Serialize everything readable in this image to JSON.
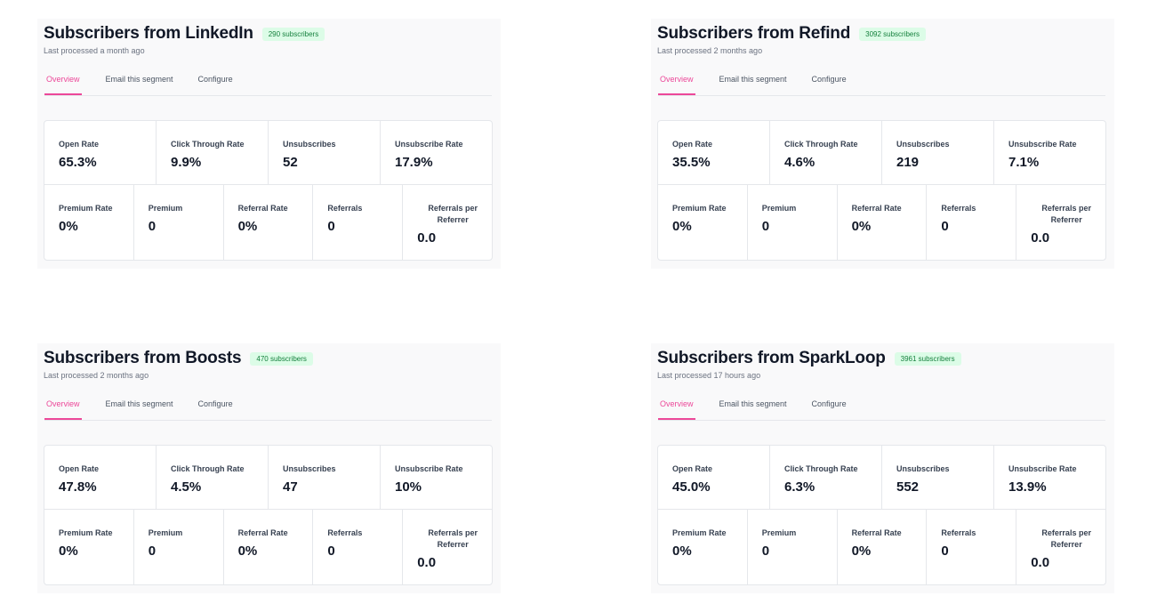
{
  "panels": [
    {
      "title": "Subscribers from LinkedIn",
      "badge": "290 subscribers",
      "last_processed": "Last processed a month ago",
      "tabs": [
        "Overview",
        "Email this segment",
        "Configure"
      ],
      "row1": [
        {
          "label": "Open Rate",
          "value": "65.3%"
        },
        {
          "label": "Click Through Rate",
          "value": "9.9%"
        },
        {
          "label": "Unsubscribes",
          "value": "52"
        },
        {
          "label": "Unsubscribe Rate",
          "value": "17.9%"
        }
      ],
      "row2": [
        {
          "label": "Premium Rate",
          "value": "0%"
        },
        {
          "label": "Premium",
          "value": "0"
        },
        {
          "label": "Referral Rate",
          "value": "0%"
        },
        {
          "label": "Referrals",
          "value": "0"
        },
        {
          "label": "Referrals per Referrer",
          "value": "0.0"
        }
      ]
    },
    {
      "title": "Subscribers from Refind",
      "badge": "3092 subscribers",
      "last_processed": "Last processed 2 months ago",
      "tabs": [
        "Overview",
        "Email this segment",
        "Configure"
      ],
      "row1": [
        {
          "label": "Open Rate",
          "value": "35.5%"
        },
        {
          "label": "Click Through Rate",
          "value": "4.6%"
        },
        {
          "label": "Unsubscribes",
          "value": "219"
        },
        {
          "label": "Unsubscribe Rate",
          "value": "7.1%"
        }
      ],
      "row2": [
        {
          "label": "Premium Rate",
          "value": "0%"
        },
        {
          "label": "Premium",
          "value": "0"
        },
        {
          "label": "Referral Rate",
          "value": "0%"
        },
        {
          "label": "Referrals",
          "value": "0"
        },
        {
          "label": "Referrals per Referrer",
          "value": "0.0"
        }
      ]
    },
    {
      "title": "Subscribers from Boosts",
      "badge": "470 subscribers",
      "last_processed": "Last processed 2 months ago",
      "tabs": [
        "Overview",
        "Email this segment",
        "Configure"
      ],
      "row1": [
        {
          "label": "Open Rate",
          "value": "47.8%"
        },
        {
          "label": "Click Through Rate",
          "value": "4.5%"
        },
        {
          "label": "Unsubscribes",
          "value": "47"
        },
        {
          "label": "Unsubscribe Rate",
          "value": "10%"
        }
      ],
      "row2": [
        {
          "label": "Premium Rate",
          "value": "0%"
        },
        {
          "label": "Premium",
          "value": "0"
        },
        {
          "label": "Referral Rate",
          "value": "0%"
        },
        {
          "label": "Referrals",
          "value": "0"
        },
        {
          "label": "Referrals per Referrer",
          "value": "0.0"
        }
      ]
    },
    {
      "title": "Subscribers from SparkLoop",
      "badge": "3961 subscribers",
      "last_processed": "Last processed 17 hours ago",
      "tabs": [
        "Overview",
        "Email this segment",
        "Configure"
      ],
      "row1": [
        {
          "label": "Open Rate",
          "value": "45.0%"
        },
        {
          "label": "Click Through Rate",
          "value": "6.3%"
        },
        {
          "label": "Unsubscribes",
          "value": "552"
        },
        {
          "label": "Unsubscribe Rate",
          "value": "13.9%"
        }
      ],
      "row2": [
        {
          "label": "Premium Rate",
          "value": "0%"
        },
        {
          "label": "Premium",
          "value": "0"
        },
        {
          "label": "Referral Rate",
          "value": "0%"
        },
        {
          "label": "Referrals",
          "value": "0"
        },
        {
          "label": "Referrals per Referrer",
          "value": "0.0"
        }
      ]
    }
  ]
}
